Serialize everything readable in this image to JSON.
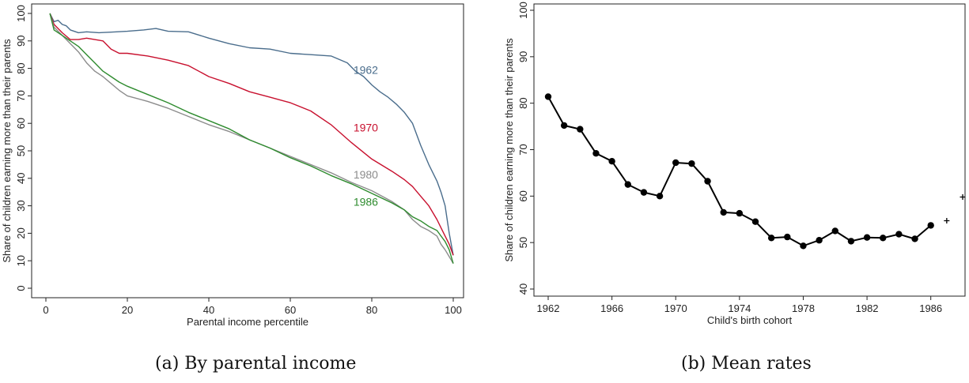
{
  "chart_data": [
    {
      "type": "line",
      "title": "",
      "caption": "(a) By parental income",
      "xlabel": "Parental income percentile",
      "ylabel": "Share of children earning more than their parents",
      "xlim": [
        0,
        100
      ],
      "ylim": [
        0,
        100
      ],
      "xticks": [
        "0",
        "20",
        "40",
        "60",
        "80",
        "100"
      ],
      "yticks": [
        "0",
        "10",
        "20",
        "30",
        "40",
        "50",
        "60",
        "70",
        "80",
        "90",
        "100"
      ],
      "legend": "inline-labels",
      "series": [
        {
          "name": "1962",
          "color": "#4a6d8c",
          "x": [
            1,
            2,
            3,
            4,
            5,
            6,
            8,
            10,
            13,
            16,
            20,
            24,
            27,
            30,
            35,
            40,
            45,
            50,
            55,
            60,
            65,
            70,
            74,
            76,
            78,
            80,
            82,
            84,
            86,
            88,
            90,
            92,
            94,
            96,
            97,
            98,
            99,
            100
          ],
          "y": [
            100,
            97,
            97.5,
            96,
            95.5,
            94,
            93,
            93.3,
            93,
            93.2,
            93.5,
            94,
            94.5,
            93.5,
            93.3,
            91,
            89,
            87.5,
            87,
            85.5,
            85,
            84.5,
            82,
            79,
            77,
            74,
            71.5,
            69.5,
            67,
            64,
            60,
            52,
            45,
            39,
            35,
            30,
            20,
            12
          ]
        },
        {
          "name": "1970",
          "color": "#c8102e",
          "x": [
            1,
            2,
            4,
            6,
            8,
            10,
            12,
            14,
            16,
            18,
            20,
            25,
            30,
            35,
            40,
            45,
            50,
            55,
            60,
            65,
            70,
            75,
            80,
            85,
            88,
            90,
            92,
            94,
            96,
            97,
            98,
            99,
            100
          ],
          "y": [
            100,
            96,
            93,
            90.5,
            90.5,
            91,
            90.5,
            90,
            87,
            85.5,
            85.5,
            84.5,
            83,
            81,
            77,
            74.5,
            71.5,
            69.5,
            67.5,
            64.5,
            59.5,
            53,
            47,
            42.5,
            39.5,
            37,
            33.5,
            30,
            25,
            22,
            19,
            16,
            12
          ]
        },
        {
          "name": "1980",
          "color": "#8c8c8c",
          "x": [
            1,
            2,
            4,
            6,
            8,
            10,
            12,
            14,
            16,
            18,
            20,
            25,
            30,
            35,
            40,
            45,
            50,
            55,
            60,
            65,
            70,
            75,
            80,
            85,
            88,
            90,
            92,
            94,
            96,
            97,
            98,
            99,
            100
          ],
          "y": [
            100,
            95,
            92,
            89,
            86,
            82,
            79,
            77,
            74.5,
            72,
            70,
            68,
            65.5,
            62.5,
            59.5,
            57,
            54,
            51,
            48,
            45,
            42,
            38.5,
            35.5,
            31.5,
            28.5,
            25,
            22.5,
            21,
            19,
            16,
            14,
            11.5,
            9
          ]
        },
        {
          "name": "1986",
          "color": "#2e8b2e",
          "x": [
            1,
            2,
            4,
            6,
            8,
            10,
            12,
            14,
            16,
            18,
            20,
            25,
            30,
            35,
            40,
            45,
            50,
            55,
            60,
            65,
            70,
            75,
            80,
            85,
            88,
            90,
            92,
            94,
            96,
            97,
            98,
            99,
            100
          ],
          "y": [
            100,
            94,
            92,
            90,
            88,
            85,
            82,
            79,
            77,
            75,
            73.5,
            70.5,
            67.5,
            64,
            61,
            58,
            54,
            51,
            47.5,
            44.5,
            41,
            38,
            34.5,
            31,
            28.5,
            26,
            24.5,
            22.5,
            21,
            19,
            17,
            14,
            9
          ]
        }
      ],
      "labels": [
        {
          "text": "1962",
          "x": 75.5,
          "y": 78,
          "color": "#4a6d8c"
        },
        {
          "text": "1970",
          "x": 75.5,
          "y": 57,
          "color": "#c8102e"
        },
        {
          "text": "1980",
          "x": 75.5,
          "y": 40,
          "color": "#8c8c8c"
        },
        {
          "text": "1986",
          "x": 75.5,
          "y": 30,
          "color": "#2e8b2e"
        }
      ]
    },
    {
      "type": "line",
      "title": "",
      "caption": "(b) Mean rates",
      "xlabel": "Child's birth cohort",
      "ylabel": "Share of children earning more than their parents",
      "xlim": [
        1962,
        1988
      ],
      "ylim": [
        40,
        100
      ],
      "xticks": [
        "1962",
        "1966",
        "1970",
        "1974",
        "1978",
        "1982",
        "1986"
      ],
      "yticks": [
        "40",
        "50",
        "60",
        "70",
        "80",
        "90",
        "100"
      ],
      "color": "#000000",
      "series": [
        {
          "name": "",
          "x": [
            1962,
            1963,
            1964,
            1965,
            1966,
            1967,
            1968,
            1969,
            1970,
            1971,
            1972,
            1973,
            1974,
            1975,
            1976,
            1977,
            1978,
            1979,
            1980,
            1981,
            1982,
            1983,
            1984,
            1985,
            1986
          ],
          "y": [
            81.4,
            75.2,
            74.4,
            69.2,
            67.5,
            62.5,
            60.8,
            60.0,
            67.2,
            67.0,
            63.2,
            56.5,
            56.3,
            54.5,
            51.0,
            51.2,
            49.3,
            50.5,
            52.5,
            50.3,
            51.1,
            51.0,
            51.8,
            50.8,
            53.7
          ]
        }
      ],
      "extra_points": [
        {
          "x": 1987,
          "y": 54.7,
          "marker": "+"
        },
        {
          "x": 1988,
          "y": 59.8,
          "marker": "+"
        }
      ]
    }
  ]
}
